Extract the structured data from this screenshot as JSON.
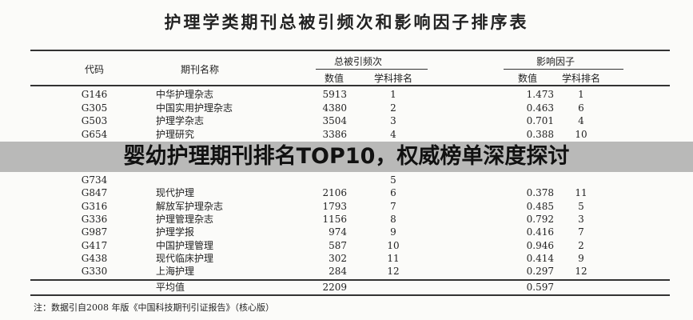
{
  "title": "护理学类期刊总被引频次和影响因子排序表",
  "headers": {
    "code": "代码",
    "name": "期刊名称",
    "citations_group": "总被引频次",
    "impact_group": "影响因子",
    "value": "数值",
    "rank": "学科排名"
  },
  "rows": [
    {
      "code": "G146",
      "name": "中华护理杂志",
      "cites": "5913",
      "cite_rank": "1",
      "if": "1.473",
      "if_rank": "1"
    },
    {
      "code": "G305",
      "name": "中国实用护理杂志",
      "cites": "4380",
      "cite_rank": "2",
      "if": "0.463",
      "if_rank": "6"
    },
    {
      "code": "G503",
      "name": "护理学杂志",
      "cites": "3504",
      "cite_rank": "3",
      "if": "0.701",
      "if_rank": "4"
    },
    {
      "code": "G654",
      "name": "护理研究",
      "cites": "3386",
      "cite_rank": "4",
      "if": "0.388",
      "if_rank": "10"
    },
    {
      "code": "G734",
      "name": "",
      "cites": "",
      "cite_rank": "5",
      "if": "",
      "if_rank": ""
    },
    {
      "code": "G847",
      "name": "现代护理",
      "cites": "2106",
      "cite_rank": "6",
      "if": "0.378",
      "if_rank": "11"
    },
    {
      "code": "G316",
      "name": "解放军护理杂志",
      "cites": "1793",
      "cite_rank": "7",
      "if": "0.485",
      "if_rank": "5"
    },
    {
      "code": "G336",
      "name": "护理管理杂志",
      "cites": "1156",
      "cite_rank": "8",
      "if": "0.792",
      "if_rank": "3"
    },
    {
      "code": "G987",
      "name": "护理学报",
      "cites": "974",
      "cite_rank": "9",
      "if": "0.416",
      "if_rank": "7"
    },
    {
      "code": "G417",
      "name": "中国护理管理",
      "cites": "587",
      "cite_rank": "10",
      "if": "0.946",
      "if_rank": "2"
    },
    {
      "code": "G438",
      "name": "现代临床护理",
      "cites": "302",
      "cite_rank": "11",
      "if": "0.414",
      "if_rank": "9"
    },
    {
      "code": "G330",
      "name": "上海护理",
      "cites": "284",
      "cite_rank": "12",
      "if": "0.297",
      "if_rank": "12"
    }
  ],
  "average": {
    "label": "平均值",
    "cites": "2209",
    "if": "0.597"
  },
  "note": "注：数据引自2008 年版《中国科技期刊引证报告》（核心版）",
  "banner": "婴幼护理期刊排名TOP10，权威榜单深度探讨"
}
